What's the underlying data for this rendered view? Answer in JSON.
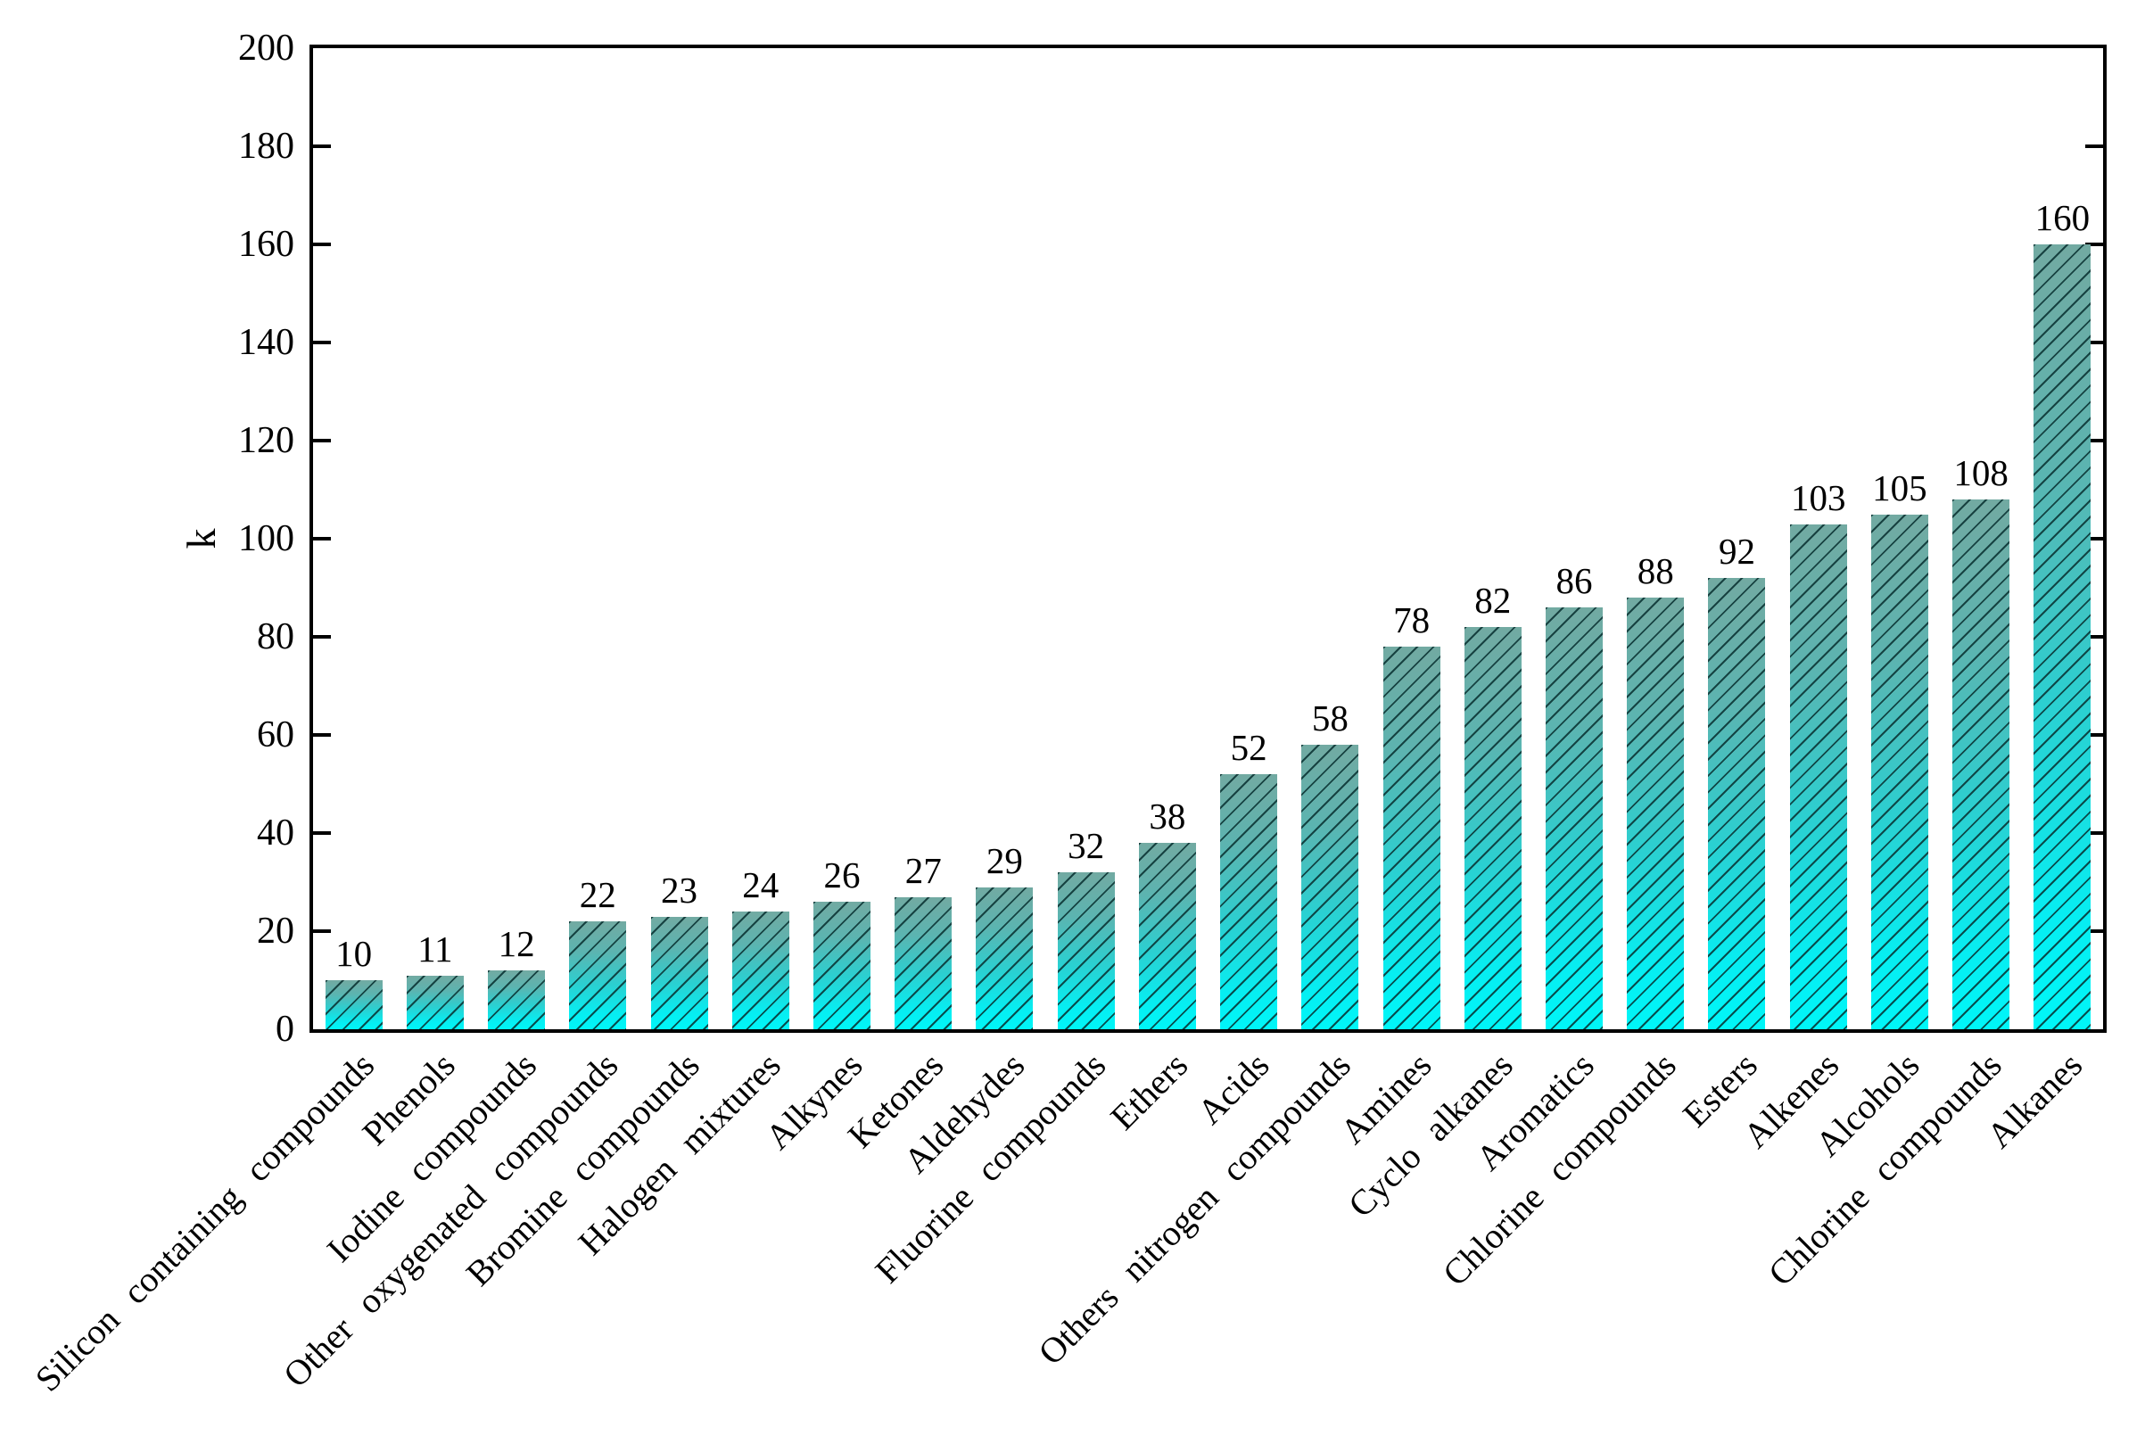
{
  "chart_data": {
    "type": "bar",
    "title": "",
    "xlabel": "",
    "ylabel": "k",
    "ylim": [
      0,
      200
    ],
    "yticks": [
      0,
      20,
      40,
      60,
      80,
      100,
      120,
      140,
      160,
      180,
      200
    ],
    "grid": "off",
    "legend": "none",
    "categories": [
      "Silicon containing compounds",
      "Phenols",
      "Iodine compounds",
      "Other oxygenated compounds",
      "Bromine compounds",
      "Halogen mixtures",
      "Alkynes",
      "Ketones",
      "Aldehydes",
      "Fluorine compounds",
      "Ethers",
      "Acids",
      "Others nitrogen compounds",
      "Amines",
      "Cyclo alkanes",
      "Aromatics",
      "Chlorine compounds",
      "Esters",
      "Alkenes",
      "Alcohols",
      "Chlorine compounds",
      "Alkanes"
    ],
    "values": [
      10,
      11,
      12,
      22,
      23,
      24,
      26,
      27,
      29,
      32,
      38,
      52,
      58,
      78,
      82,
      86,
      88,
      92,
      103,
      105,
      108,
      160
    ],
    "bar_value_labels": [
      "10",
      "11",
      "12",
      "22",
      "23",
      "24",
      "26",
      "27",
      "29",
      "32",
      "38",
      "52",
      "58",
      "78",
      "82",
      "86",
      "88",
      "92",
      "103",
      "105",
      "108",
      "160"
    ],
    "colors": {
      "bar_gradient_top": "#72aaa2",
      "bar_gradient_bottom": "#00f6f8",
      "hatch_color": "#083030",
      "hatch_pattern": "/",
      "axis_color": "#000000",
      "text_color": "#000000",
      "background": "#ffffff"
    }
  }
}
